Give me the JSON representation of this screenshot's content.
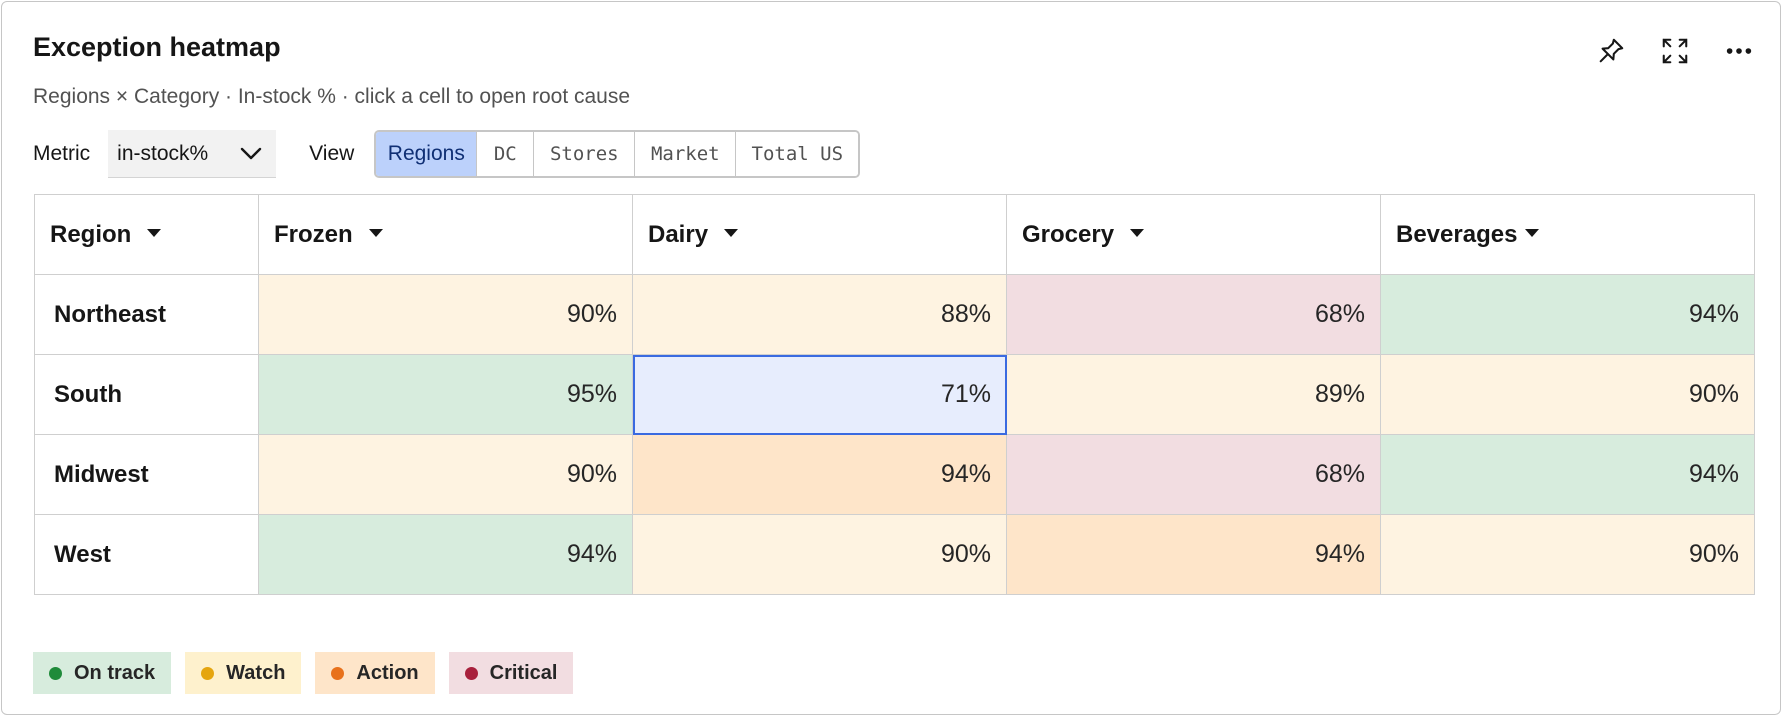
{
  "header": {
    "title": "Exception heatmap",
    "subtitle": "Regions × Category · In-stock % · click a cell to open root cause"
  },
  "tools": [
    {
      "name": "pin-icon"
    },
    {
      "name": "expand-icon"
    },
    {
      "name": "more-icon"
    }
  ],
  "controls": {
    "metric_label": "Metric",
    "metric_value": "in-stock%",
    "view_label": "View",
    "views": [
      {
        "label": "Regions",
        "active": true
      },
      {
        "label": "DC",
        "active": false
      },
      {
        "label": "Stores",
        "active": false
      },
      {
        "label": "Market",
        "active": false
      },
      {
        "label": "Total US",
        "active": false
      }
    ]
  },
  "table": {
    "columns": [
      "Region",
      "Frozen",
      "Dairy",
      "Grocery",
      "Beverages"
    ],
    "rows": [
      {
        "label": "Northeast",
        "cells": [
          {
            "value": "90%",
            "status": "watch"
          },
          {
            "value": "88%",
            "status": "watch"
          },
          {
            "value": "68%",
            "status": "critical"
          },
          {
            "value": "94%",
            "status": "ontrack"
          }
        ]
      },
      {
        "label": "South",
        "cells": [
          {
            "value": "95%",
            "status": "ontrack"
          },
          {
            "value": "71%",
            "status": "selected"
          },
          {
            "value": "89%",
            "status": "watch"
          },
          {
            "value": "90%",
            "status": "watch"
          }
        ]
      },
      {
        "label": "Midwest",
        "cells": [
          {
            "value": "90%",
            "status": "watch"
          },
          {
            "value": "94%",
            "status": "action"
          },
          {
            "value": "68%",
            "status": "critical"
          },
          {
            "value": "94%",
            "status": "ontrack"
          }
        ]
      },
      {
        "label": "West",
        "cells": [
          {
            "value": "94%",
            "status": "ontrack"
          },
          {
            "value": "90%",
            "status": "watch"
          },
          {
            "value": "94%",
            "status": "action"
          },
          {
            "value": "90%",
            "status": "watch"
          }
        ]
      }
    ]
  },
  "legend": [
    {
      "label": "On track",
      "key": "ontrack"
    },
    {
      "label": "Watch",
      "key": "watch"
    },
    {
      "label": "Action",
      "key": "action"
    },
    {
      "label": "Critical",
      "key": "critical"
    }
  ],
  "colors": {
    "ontrack": {
      "bg": "#d7ecdd",
      "dot": "#1f8b3a"
    },
    "watch": {
      "bg": "#fef3e1",
      "dot": "#e5a50f",
      "chip": "#fef1cd"
    },
    "action": {
      "bg": "#fee5c9",
      "dot": "#e8711b"
    },
    "critical": {
      "bg": "#f2dde1",
      "dot": "#a8203c"
    },
    "selected": {
      "bg": "#e7edfd",
      "border": "#3a6ae0"
    }
  }
}
